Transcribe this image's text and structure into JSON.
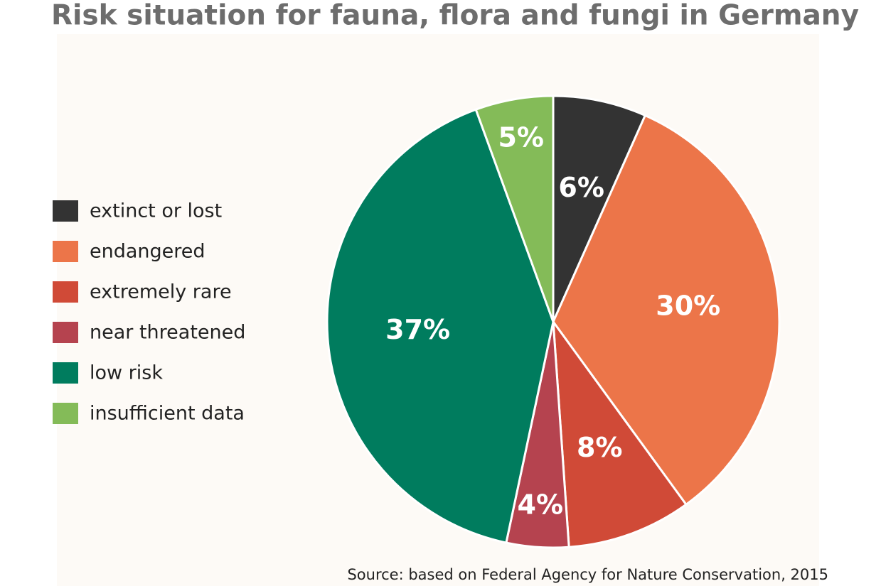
{
  "chart_data": {
    "type": "pie",
    "title": "Risk situation for fauna, flora and fungi in Germany",
    "categories": [
      "extinct or lost",
      "endangered",
      "extremely rare",
      "near threatened",
      "low risk",
      "insufficient data"
    ],
    "values": [
      6,
      30,
      8,
      4,
      37,
      5
    ],
    "value_labels": [
      "6%",
      "30%",
      "8%",
      "4%",
      "37%",
      "5%"
    ],
    "colors": [
      "#333333",
      "#ec7549",
      "#d04a37",
      "#b5434f",
      "#007c5e",
      "#84bb58"
    ],
    "legend": "left",
    "source": "Source: based on Federal Agency for Nature Conservation, 2015"
  }
}
